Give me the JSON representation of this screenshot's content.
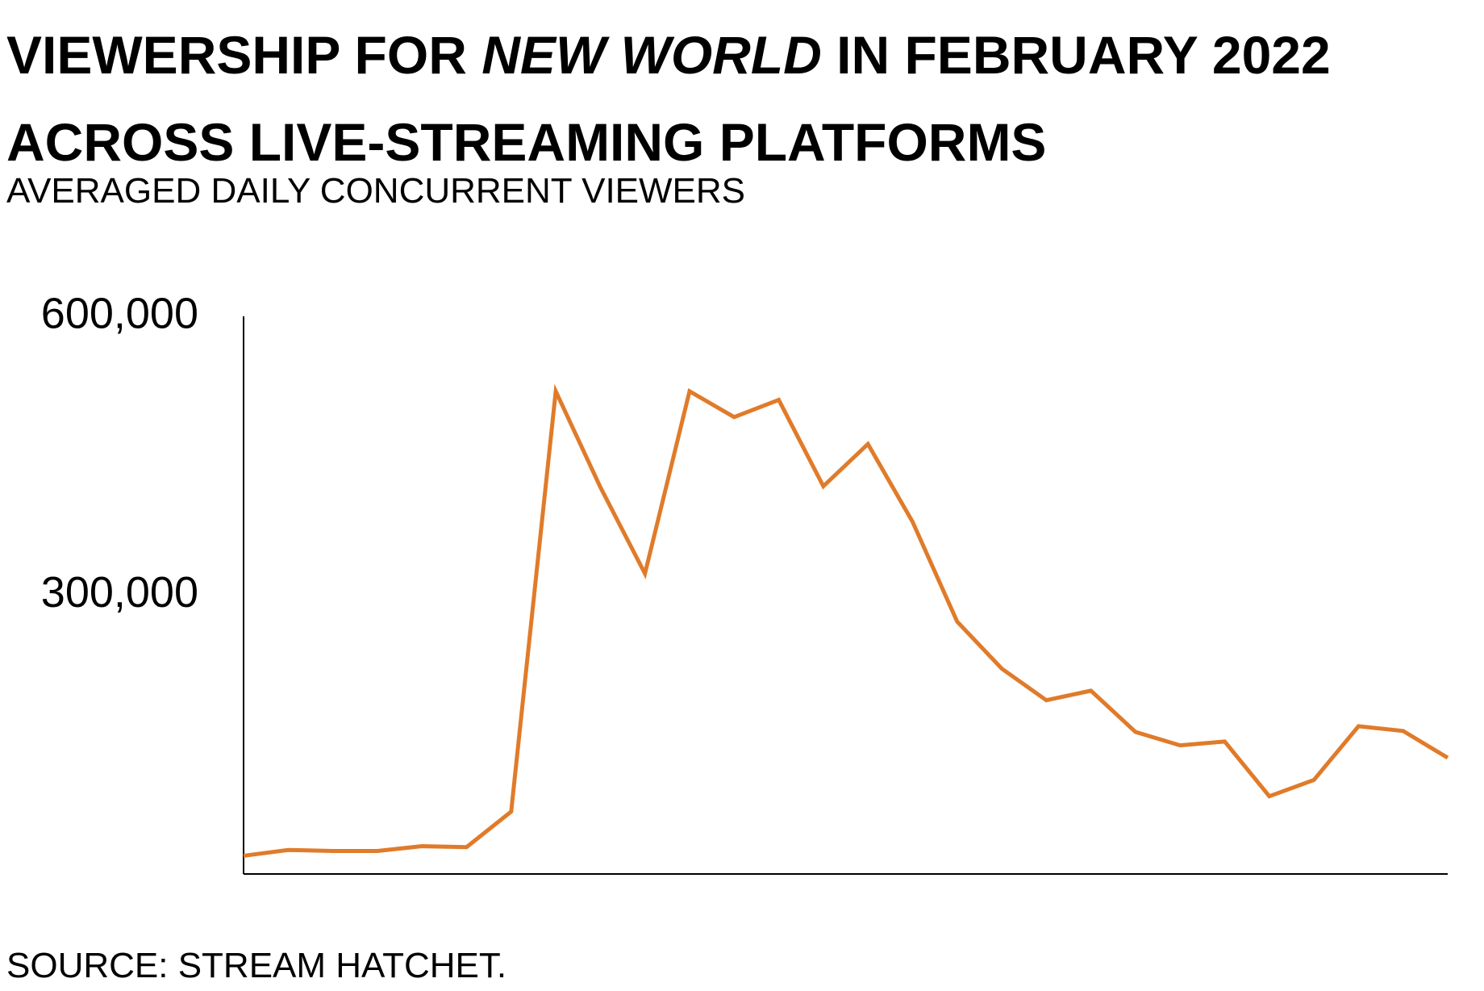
{
  "chart_data": {
    "type": "line",
    "title": {
      "before": "VIEWERSHIP FOR",
      "italic": "NEW WORLD",
      "after": "IN FEBRUARY 2022 ACROSS LIVE-STREAMING PLATFORMS"
    },
    "subtitle": "AVERAGED DAILY CONCURRENT VIEWERS",
    "source": "SOURCE: STREAM HATCHET.",
    "categories": [
      null,
      null,
      null,
      null,
      null,
      null,
      null,
      null,
      null,
      null,
      null,
      null,
      null,
      null,
      null,
      null,
      null,
      null,
      null,
      null,
      null,
      null,
      null,
      null,
      null,
      null,
      null,
      null
    ],
    "values": [
      19600,
      25800,
      24800,
      24800,
      29900,
      28900,
      67100,
      519400,
      416200,
      323200,
      519400,
      491600,
      510100,
      417200,
      462600,
      379000,
      271600,
      221000,
      186900,
      197200,
      152800,
      138400,
      142500,
      83600,
      101200,
      159000,
      153900,
      125000
    ],
    "color": "#e07b2a",
    "ylim": [
      0,
      600000
    ],
    "yticks": [
      {
        "value": 300000,
        "label": "300,000"
      },
      {
        "value": 600000,
        "label": "600,000"
      }
    ],
    "grid": false
  }
}
